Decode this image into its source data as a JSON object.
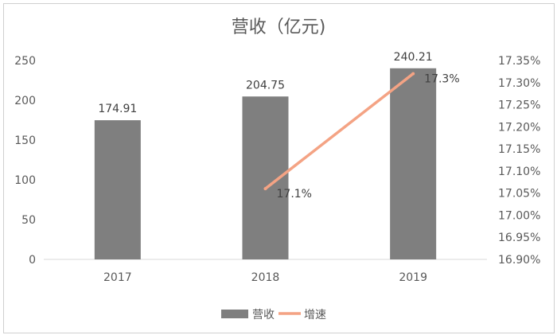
{
  "chart_data": {
    "type": "bar",
    "title": "营收（亿元)",
    "categories": [
      "2017",
      "2018",
      "2019"
    ],
    "series": [
      {
        "name": "营收",
        "type": "bar",
        "values": [
          174.91,
          204.75,
          240.21
        ],
        "color": "#7f7f7f",
        "axis": "left",
        "data_labels": [
          "174.91",
          "204.75",
          "240.21"
        ]
      },
      {
        "name": "增速",
        "type": "line",
        "values": [
          null,
          0.1706,
          0.1732
        ],
        "color": "#f4a384",
        "axis": "right",
        "data_labels": [
          "",
          "17.1%",
          "17.3%"
        ]
      }
    ],
    "y_left": {
      "min": 0,
      "max": 250,
      "step": 50,
      "ticks": [
        "0",
        "50",
        "100",
        "150",
        "200",
        "250"
      ]
    },
    "y_right": {
      "min": 0.169,
      "max": 0.1735,
      "step": 0.0005,
      "ticks": [
        "16.90%",
        "16.95%",
        "17.00%",
        "17.05%",
        "17.10%",
        "17.15%",
        "17.20%",
        "17.25%",
        "17.30%",
        "17.35%"
      ]
    },
    "grid": false,
    "legend": "bottom"
  }
}
